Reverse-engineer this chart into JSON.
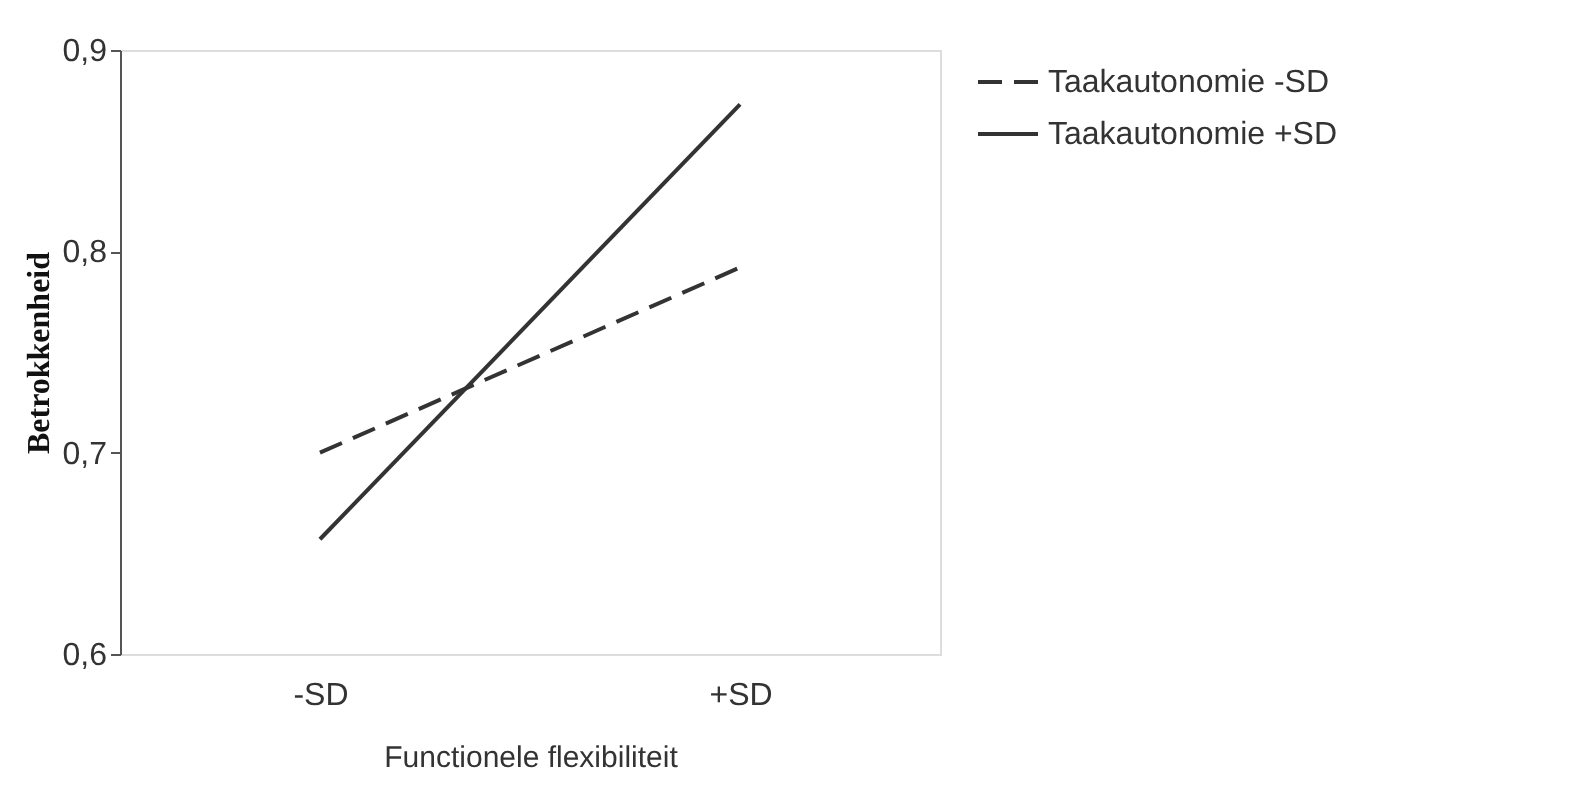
{
  "chart_data": {
    "type": "line",
    "xlabel": "Functionele flexibiliteit",
    "ylabel": "Betrokkenheid",
    "categories": [
      "-SD",
      "+SD"
    ],
    "series": [
      {
        "name": "Taakautonomie -SD",
        "color": "#333333",
        "line_style": "dashed",
        "values": [
          0.7,
          0.792
        ]
      },
      {
        "name": "Taakautonomie +SD",
        "color": "#333333",
        "line_style": "solid",
        "values": [
          0.657,
          0.873
        ]
      }
    ],
    "ylim": [
      0.6,
      0.9
    ],
    "yticks": [
      {
        "value": 0.6,
        "label": "0,6"
      },
      {
        "value": 0.7,
        "label": "0,7"
      },
      {
        "value": 0.8,
        "label": "0,8"
      },
      {
        "value": 0.9,
        "label": "0,9"
      }
    ],
    "grid": false,
    "legend": "right",
    "marker": "none"
  }
}
